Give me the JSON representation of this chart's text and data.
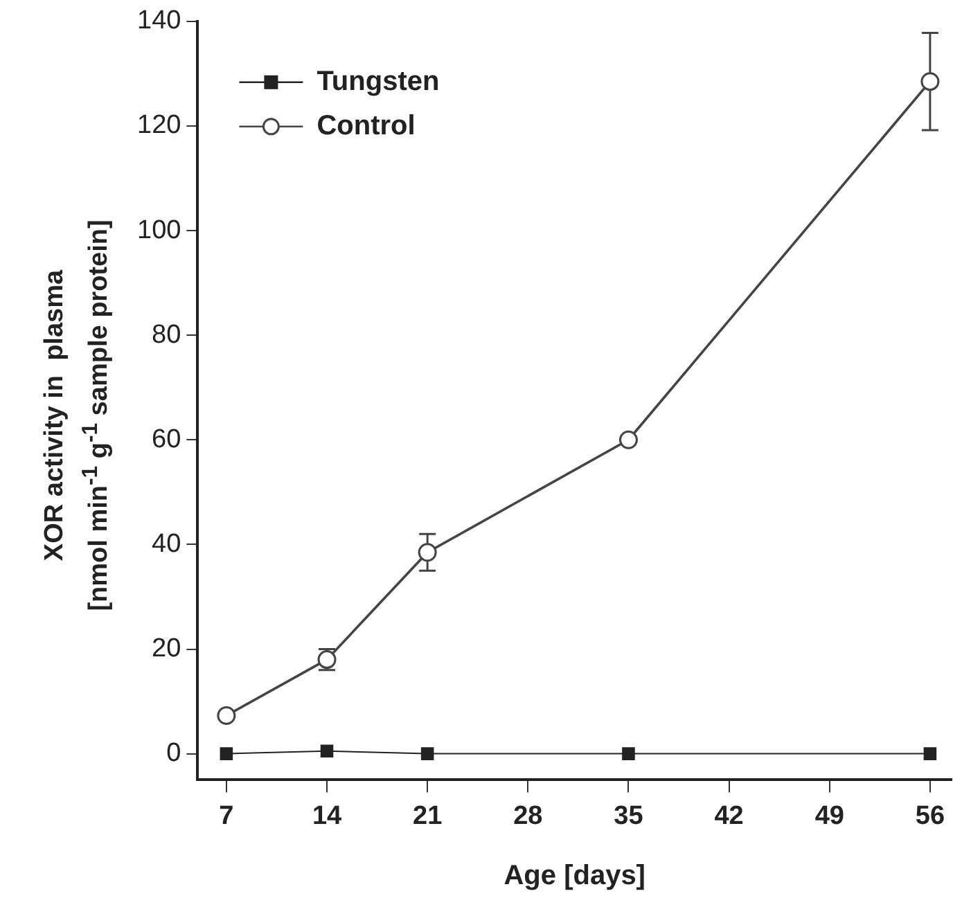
{
  "chart_data": {
    "type": "line",
    "xlabel": "Age [days]",
    "ylabel": "XOR activity in  plasma\n[nmol min$^{-1}$ g$^{-1}$ sample protein]",
    "x": [
      7,
      14,
      21,
      35,
      56
    ],
    "xlim": [
      5,
      57.5
    ],
    "xticks": [
      7,
      14,
      21,
      28,
      35,
      42,
      49,
      56
    ],
    "ylim": [
      -5,
      140
    ],
    "yticks": [
      0,
      20,
      40,
      60,
      80,
      100,
      120,
      140
    ],
    "grid": false,
    "legend": "top left",
    "series": [
      {
        "name": "Tungsten",
        "color": "#222222",
        "marker": "square",
        "values": [
          0,
          0.5,
          0,
          0,
          0
        ]
      },
      {
        "name": "Control",
        "color": "#444444",
        "marker": "circle",
        "values": [
          7.3,
          18,
          38.5,
          60,
          128.5
        ],
        "errors": [
          null,
          2,
          3.5,
          null,
          9.3
        ]
      }
    ]
  }
}
